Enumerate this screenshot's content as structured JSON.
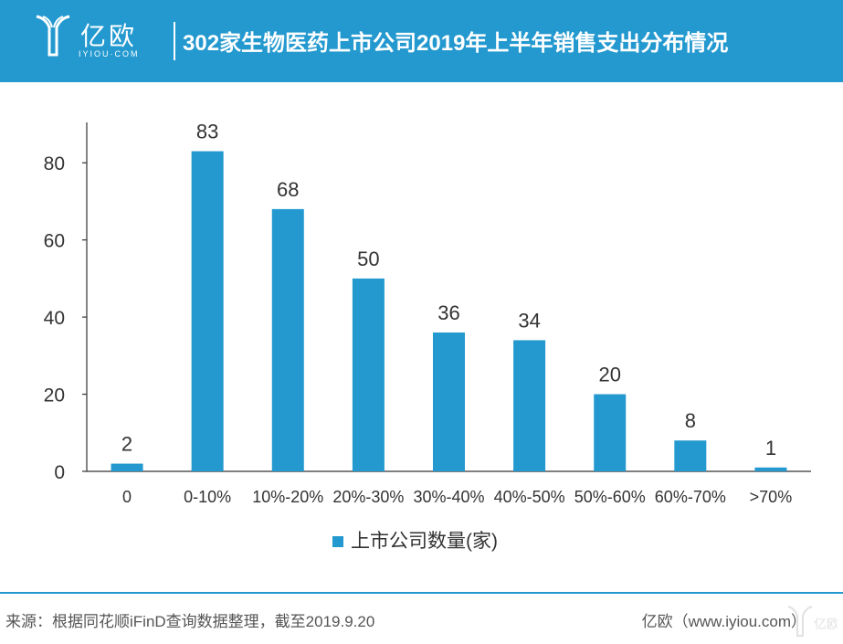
{
  "header": {
    "logo_text": "亿欧",
    "logo_domain": "IYIOU·COM",
    "title": "302家生物医药上市公司2019年上半年销售支出分布情况"
  },
  "colors": {
    "header_bg": "#2399cf",
    "bar": "#2399cf",
    "footer_line": "#2399cf"
  },
  "chart_data": {
    "type": "bar",
    "categories": [
      "0",
      "0-10%",
      "10%-20%",
      "20%-30%",
      "30%-40%",
      "40%-50%",
      "50%-60%",
      "60%-70%",
      ">70%"
    ],
    "series": [
      {
        "name": "上市公司数量(家)",
        "values": [
          2,
          83,
          68,
          50,
          36,
          34,
          20,
          8,
          1
        ]
      }
    ],
    "ylim": [
      0,
      90
    ],
    "yticks": [
      0,
      20,
      40,
      60,
      80
    ],
    "grid": false,
    "legend": "bottom-center",
    "data_labels": true
  },
  "footer": {
    "source": "来源：根据同花顺iFinD查询数据整理，截至2019.9.20",
    "brand": "亿欧（www.iyiou.com）"
  }
}
